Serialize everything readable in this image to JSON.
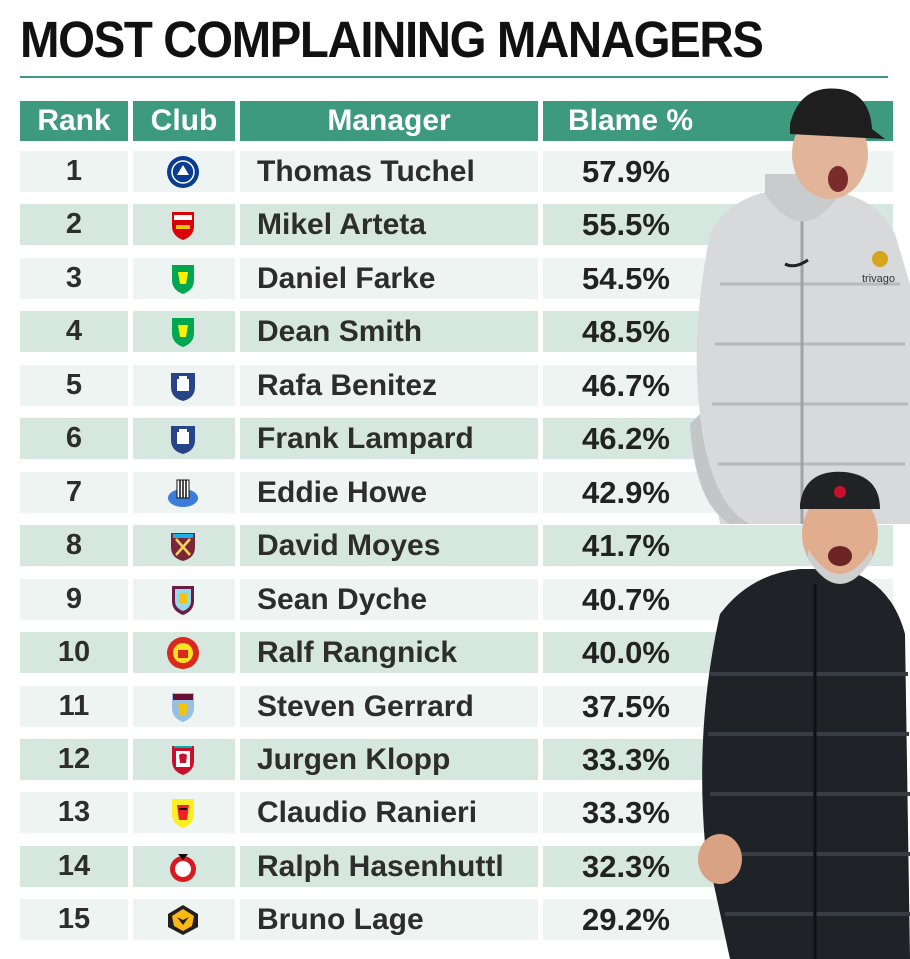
{
  "title": "MOST COMPLAINING MANAGERS",
  "columns": {
    "rank": "Rank",
    "club": "Club",
    "manager": "Manager",
    "blame": "Blame %"
  },
  "colors": {
    "header": "#3d9a7d",
    "row_a": "#eef4f1",
    "row_b": "#d6e7df"
  },
  "rows": [
    {
      "rank": "1",
      "club_icon": "chelsea-crest-icon",
      "manager": "Thomas Tuchel",
      "blame": "57.9%"
    },
    {
      "rank": "2",
      "club_icon": "arsenal-crest-icon",
      "manager": "Mikel Arteta",
      "blame": "55.5%"
    },
    {
      "rank": "3",
      "club_icon": "norwich-crest-icon",
      "manager": "Daniel Farke",
      "blame": "54.5%"
    },
    {
      "rank": "4",
      "club_icon": "norwich-crest-icon",
      "manager": "Dean Smith",
      "blame": "48.5%"
    },
    {
      "rank": "5",
      "club_icon": "everton-crest-icon",
      "manager": "Rafa Benitez",
      "blame": "46.7%"
    },
    {
      "rank": "6",
      "club_icon": "everton-crest-icon",
      "manager": "Frank Lampard",
      "blame": "46.2%"
    },
    {
      "rank": "7",
      "club_icon": "newcastle-crest-icon",
      "manager": "Eddie Howe",
      "blame": "42.9%"
    },
    {
      "rank": "8",
      "club_icon": "west-ham-crest-icon",
      "manager": "David Moyes",
      "blame": "41.7%"
    },
    {
      "rank": "9",
      "club_icon": "burnley-crest-icon",
      "manager": "Sean Dyche",
      "blame": "40.7%"
    },
    {
      "rank": "10",
      "club_icon": "man-utd-crest-icon",
      "manager": "Ralf Rangnick",
      "blame": "40.0%"
    },
    {
      "rank": "11",
      "club_icon": "aston-villa-crest-icon",
      "manager": "Steven Gerrard",
      "blame": "37.5%"
    },
    {
      "rank": "12",
      "club_icon": "liverpool-crest-icon",
      "manager": "Jurgen Klopp",
      "blame": "33.3%"
    },
    {
      "rank": "13",
      "club_icon": "watford-crest-icon",
      "manager": "Claudio Ranieri",
      "blame": "33.3%"
    },
    {
      "rank": "14",
      "club_icon": "southampton-crest-icon",
      "manager": "Ralph Hasenhuttl",
      "blame": "32.3%"
    },
    {
      "rank": "15",
      "club_icon": "wolves-crest-icon",
      "manager": "Bruno Lage",
      "blame": "29.2%"
    }
  ]
}
